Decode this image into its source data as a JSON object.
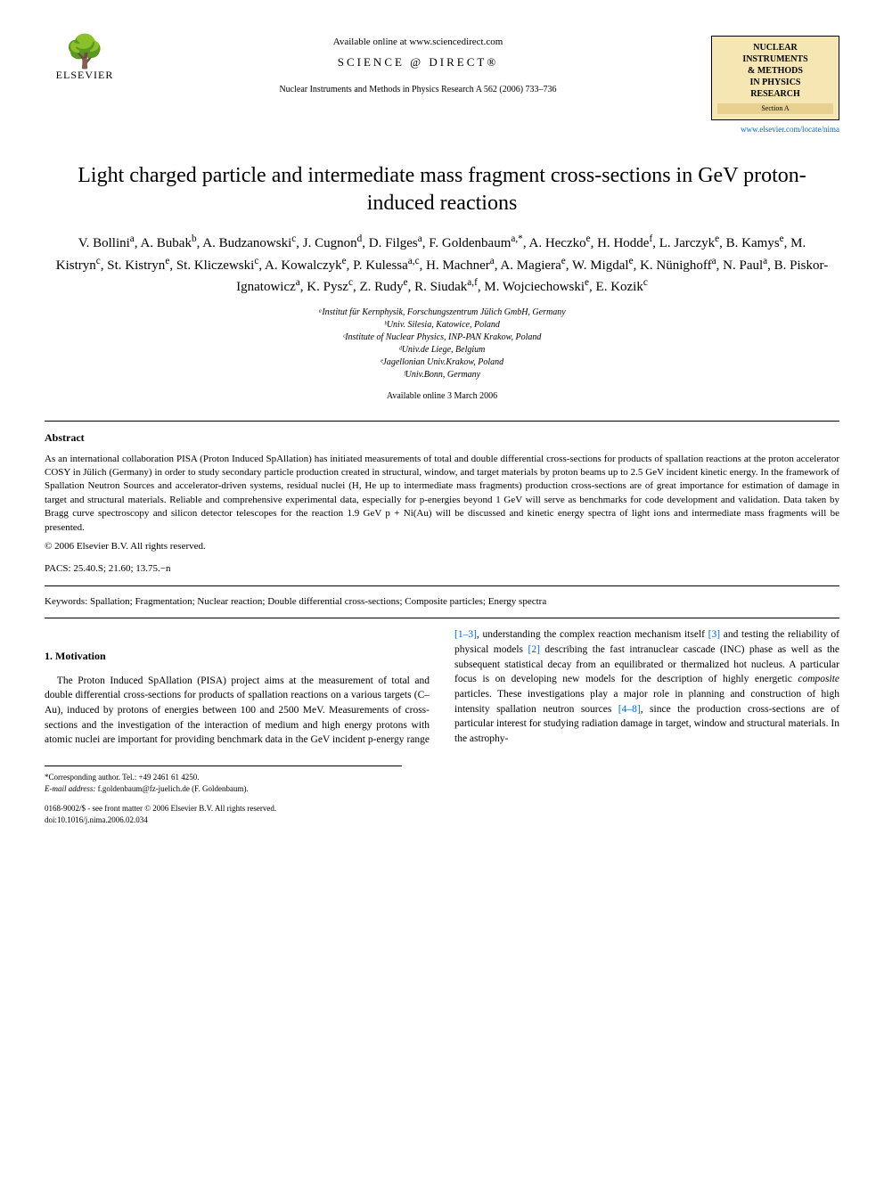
{
  "header": {
    "publisher_name": "ELSEVIER",
    "available_text": "Available online at www.sciencedirect.com",
    "sd_logo_text": "SCIENCE @ DIRECT®",
    "citation": "Nuclear Instruments and Methods in Physics Research A 562 (2006) 733–736",
    "journal_box_lines": [
      "NUCLEAR",
      "INSTRUMENTS",
      "& METHODS",
      "IN PHYSICS",
      "RESEARCH"
    ],
    "journal_section": "Section A",
    "journal_url": "www.elsevier.com/locate/nima"
  },
  "article": {
    "title": "Light charged particle and intermediate mass fragment cross-sections in GeV proton-induced reactions",
    "authors_html": "V. Bollini<sup>a</sup>, A. Bubak<sup>b</sup>, A. Budzanowski<sup>c</sup>, J. Cugnon<sup>d</sup>, D. Filges<sup>a</sup>, F. Goldenbaum<sup>a,*</sup>, A. Heczko<sup>e</sup>, H. Hodde<sup>f</sup>, L. Jarczyk<sup>e</sup>, B. Kamys<sup>e</sup>, M. Kistryn<sup>c</sup>, St. Kistryn<sup>e</sup>, St. Kliczewski<sup>c</sup>, A. Kowalczyk<sup>e</sup>, P. Kulessa<sup>a,c</sup>, H. Machner<sup>a</sup>, A. Magiera<sup>e</sup>, W. Migdal<sup>e</sup>, K. Nünighoff<sup>a</sup>, N. Paul<sup>a</sup>, B. Piskor-Ignatowicz<sup>a</sup>, K. Pysz<sup>c</sup>, Z. Rudy<sup>e</sup>, R. Siudak<sup>a,f</sup>, M. Wojciechowski<sup>e</sup>, E. Kozik<sup>c</sup>",
    "affiliations": [
      "ᵃInstitut für Kernphysik, Forschungszentrum Jülich GmbH, Germany",
      "ᵇUniv. Silesia, Katowice, Poland",
      "ᶜInstitute of Nuclear Physics, INP-PAN Krakow, Poland",
      "ᵈUniv.de Liege, Belgium",
      "ᵉJagellonian Univ.Krakow, Poland",
      "ᶠUniv.Bonn, Germany"
    ],
    "available_date": "Available online 3 March 2006"
  },
  "abstract": {
    "heading": "Abstract",
    "body": "As an international collaboration PISA (Proton Induced SpAllation) has initiated measurements of total and double differential cross-sections for products of spallation reactions at the proton accelerator COSY in Jülich (Germany) in order to study secondary particle production created in structural, window, and target materials by proton beams up to 2.5 GeV incident kinetic energy. In the framework of Spallation Neutron Sources and accelerator-driven systems, residual nuclei (H, He up to intermediate mass fragments) production cross-sections are of great importance for estimation of damage in target and structural materials. Reliable and comprehensive experimental data, especially for p-energies beyond 1 GeV will serve as benchmarks for code development and validation. Data taken by Bragg curve spectroscopy and silicon detector telescopes for the reaction 1.9 GeV p + Ni(Au) will be discussed and kinetic energy spectra of light ions and intermediate mass fragments will be presented.",
    "copyright": "© 2006 Elsevier B.V. All rights reserved."
  },
  "pacs": {
    "label": "PACS:",
    "value": "25.40.S; 21.60; 13.75.−n"
  },
  "keywords": {
    "label": "Keywords:",
    "value": "Spallation; Fragmentation; Nuclear reaction; Double differential cross-sections; Composite particles; Energy spectra"
  },
  "sections": {
    "motivation": {
      "heading": "1. Motivation",
      "col1": "The Proton Induced SpAllation (PISA) project aims at the measurement of total and double differential cross-sections for products of spallation reactions on a various targets (C–Au), induced by protons of energies between 100 and 2500 MeV. Measurements of cross-sections and the investigation of the interaction of medium and high energy protons with atomic nuclei are important for",
      "col2_part1": "providing benchmark data in the GeV incident p-energy range ",
      "col2_ref1": "[1–3]",
      "col2_part2": ", understanding the complex reaction mechanism itself ",
      "col2_ref2": "[3]",
      "col2_part3": " and testing the reliability of physical models ",
      "col2_ref3": "[2]",
      "col2_part4": " describing the fast intranuclear cascade (INC) phase as well as the subsequent statistical decay from an equilibrated or thermalized hot nucleus. A particular focus is on developing new models for the description of highly energetic ",
      "col2_italic": "composite",
      "col2_part5": " particles. These investigations play a major role in planning and construction of high intensity spallation neutron sources ",
      "col2_ref4": "[4–8]",
      "col2_part6": ", since the production cross-sections are of particular interest for studying radiation damage in target, window and structural materials. In the astrophy-"
    }
  },
  "footer": {
    "corresponding": "*Corresponding author. Tel.: +49 2461 61 4250.",
    "email_label": "E-mail address:",
    "email": "f.goldenbaum@fz-juelich.de (F. Goldenbaum).",
    "issn_line": "0168-9002/$ - see front matter © 2006 Elsevier B.V. All rights reserved.",
    "doi": "doi:10.1016/j.nima.2006.02.034"
  },
  "colors": {
    "link": "#0066cc",
    "journal_box_bg": "#f5e6b3",
    "text": "#000000",
    "bg": "#ffffff"
  }
}
